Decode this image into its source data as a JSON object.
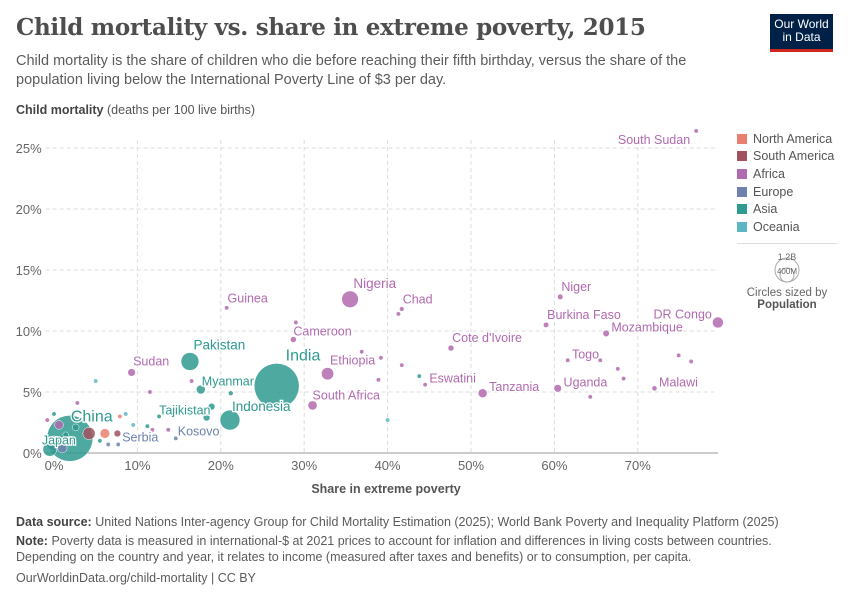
{
  "header": {
    "title": "Child mortality vs. share in extreme poverty, 2015",
    "subtitle": "Child mortality is the share of children who die before reaching their fifth birthday, versus the share of the population living below the International Poverty Line of $3 per day.",
    "logo": "Our World in Data"
  },
  "legend": {
    "items": [
      {
        "label": "North America",
        "color": "#e9806f"
      },
      {
        "label": "South America",
        "color": "#a2525e"
      },
      {
        "label": "Africa",
        "color": "#b16aaf"
      },
      {
        "label": "Europe",
        "color": "#6d82ae"
      },
      {
        "label": "Asia",
        "color": "#2f9a8f"
      },
      {
        "label": "Oceania",
        "color": "#5bb7c5"
      }
    ],
    "size_big": "1.2B",
    "size_small": "400M",
    "size_caption": "Circles sized by",
    "size_var": "Population"
  },
  "footer": {
    "source_label": "Data source:",
    "source": "United Nations Inter-agency Group for Child Mortality Estimation (2025); World Bank Poverty and Inequality Platform (2025)",
    "note_label": "Note:",
    "note": "Poverty data is measured in international-$ at 2021 prices to account for inflation and differences in living costs between countries. Depending on the country and year, it relates to income (measured after taxes and benefits) or to consumption, per capita.",
    "url": "OurWorldinData.org/child-mortality | CC BY"
  },
  "chart_data": {
    "type": "scatter",
    "xlabel": "Share in extreme poverty",
    "ylabel": "Child mortality",
    "ylabel_unit": "(deaths per 100 live births)",
    "xlim": [
      -1,
      80
    ],
    "ylim": [
      0,
      26.5
    ],
    "xticks": [
      "0%",
      "10%",
      "20%",
      "30%",
      "40%",
      "50%",
      "60%",
      "70%"
    ],
    "xtick_values": [
      0,
      10,
      20,
      30,
      40,
      50,
      60,
      70
    ],
    "yticks": [
      "0%",
      "5%",
      "10%",
      "15%",
      "20%",
      "25%"
    ],
    "ytick_values": [
      0,
      5,
      10,
      15,
      20,
      25
    ],
    "grid": true,
    "legend_placement": "right",
    "points": [
      {
        "label": "South Sudan",
        "x": 77,
        "y": 26.4,
        "region": "Africa",
        "pop": 11
      },
      {
        "label": "Niger",
        "x": 60.7,
        "y": 12.8,
        "region": "Africa",
        "pop": 20
      },
      {
        "label": "Burkina Faso",
        "x": 59,
        "y": 10.5,
        "region": "Africa",
        "pop": 19
      },
      {
        "label": "DR Congo",
        "x": 79.6,
        "y": 10.7,
        "region": "Africa",
        "pop": 78
      },
      {
        "label": "Nigeria",
        "x": 35.5,
        "y": 12.6,
        "region": "Africa",
        "pop": 181
      },
      {
        "label": "Guinea",
        "x": 20.7,
        "y": 11.9,
        "region": "Africa",
        "pop": 12
      },
      {
        "label": "Chad",
        "x": 41.7,
        "y": 11.8,
        "region": "Africa",
        "pop": 14
      },
      {
        "label": "",
        "x": 41.3,
        "y": 11.4,
        "region": "Africa",
        "pop": 5
      },
      {
        "label": "",
        "x": 29,
        "y": 10.7,
        "region": "Africa",
        "pop": 5
      },
      {
        "label": "Cameroon",
        "x": 28.7,
        "y": 9.3,
        "region": "Africa",
        "pop": 23
      },
      {
        "label": "Cote d'Ivoire",
        "x": 47.6,
        "y": 8.6,
        "region": "Africa",
        "pop": 23
      },
      {
        "label": "Togo",
        "x": 61.6,
        "y": 7.6,
        "region": "Africa",
        "pop": 7
      },
      {
        "label": "Mozambique",
        "x": 66.2,
        "y": 9.8,
        "region": "Africa",
        "pop": 27
      },
      {
        "label": "",
        "x": 74.9,
        "y": 8.0,
        "region": "Africa",
        "pop": 10
      },
      {
        "label": "",
        "x": 76.4,
        "y": 7.5,
        "region": "Africa",
        "pop": 6
      },
      {
        "label": "",
        "x": 65.5,
        "y": 7.6,
        "region": "Africa",
        "pop": 5
      },
      {
        "label": "",
        "x": 67.6,
        "y": 6.9,
        "region": "Africa",
        "pop": 8
      },
      {
        "label": "",
        "x": 68.3,
        "y": 6.1,
        "region": "Africa",
        "pop": 5
      },
      {
        "label": "",
        "x": 64.3,
        "y": 4.6,
        "region": "Africa",
        "pop": 5
      },
      {
        "label": "Malawi",
        "x": 72,
        "y": 5.3,
        "region": "Africa",
        "pop": 17
      },
      {
        "label": "Uganda",
        "x": 60.4,
        "y": 5.3,
        "region": "Africa",
        "pop": 38
      },
      {
        "label": "Tanzania",
        "x": 51.4,
        "y": 4.9,
        "region": "Africa",
        "pop": 52
      },
      {
        "label": "Eswatini",
        "x": 44.5,
        "y": 5.6,
        "region": "Africa",
        "pop": 1.1
      },
      {
        "label": "",
        "x": 43.8,
        "y": 6.3,
        "region": "Asia",
        "pop": 3
      },
      {
        "label": "",
        "x": 39.2,
        "y": 7.8,
        "region": "Africa",
        "pop": 7
      },
      {
        "label": "",
        "x": 41.7,
        "y": 7.2,
        "region": "Africa",
        "pop": 4
      },
      {
        "label": "",
        "x": 36.9,
        "y": 8.3,
        "region": "Africa",
        "pop": 4
      },
      {
        "label": "",
        "x": 38.9,
        "y": 6.0,
        "region": "Africa",
        "pop": 4
      },
      {
        "label": "",
        "x": 40,
        "y": 2.7,
        "region": "Oceania",
        "pop": 3
      },
      {
        "label": "Ethiopia",
        "x": 32.8,
        "y": 6.5,
        "region": "Africa",
        "pop": 100
      },
      {
        "label": "South Africa",
        "x": 31,
        "y": 3.9,
        "region": "Africa",
        "pop": 55
      },
      {
        "label": "India",
        "x": 26.7,
        "y": 5.5,
        "region": "Asia",
        "pop": 1320
      },
      {
        "label": "Pakistan",
        "x": 16.3,
        "y": 7.5,
        "region": "Asia",
        "pop": 208
      },
      {
        "label": "Sudan",
        "x": 9.3,
        "y": 6.6,
        "region": "Africa",
        "pop": 38
      },
      {
        "label": "Myanmar",
        "x": 17.6,
        "y": 5.2,
        "region": "Asia",
        "pop": 52
      },
      {
        "label": "",
        "x": 21.2,
        "y": 4.9,
        "region": "Asia",
        "pop": 15
      },
      {
        "label": "",
        "x": 16.5,
        "y": 5.9,
        "region": "Africa",
        "pop": 4
      },
      {
        "label": "",
        "x": 11.5,
        "y": 5.0,
        "region": "Africa",
        "pop": 4
      },
      {
        "label": "",
        "x": 5,
        "y": 5.9,
        "region": "Oceania",
        "pop": 3
      },
      {
        "label": "Indonesia",
        "x": 21.1,
        "y": 2.7,
        "region": "Asia",
        "pop": 258
      },
      {
        "label": "",
        "x": 18.9,
        "y": 3.8,
        "region": "Asia",
        "pop": 30
      },
      {
        "label": "",
        "x": 18.3,
        "y": 2.9,
        "region": "Asia",
        "pop": 30
      },
      {
        "label": "Tajikistan",
        "x": 12.6,
        "y": 3.0,
        "region": "Asia",
        "pop": 8
      },
      {
        "label": "Kosovo",
        "x": 14.6,
        "y": 1.2,
        "region": "Europe",
        "pop": 1.8
      },
      {
        "label": "Serbia",
        "x": 7.7,
        "y": 0.7,
        "region": "Europe",
        "pop": 7
      },
      {
        "label": "",
        "x": 11.8,
        "y": 1.9,
        "region": "Africa",
        "pop": 4
      },
      {
        "label": "",
        "x": 13.7,
        "y": 1.9,
        "region": "Africa",
        "pop": 3
      },
      {
        "label": "",
        "x": 9.5,
        "y": 2.3,
        "region": "Oceania",
        "pop": 3
      },
      {
        "label": "",
        "x": 11.2,
        "y": 2.2,
        "region": "Asia",
        "pop": 5
      },
      {
        "label": "",
        "x": 7.9,
        "y": 3.0,
        "region": "North America",
        "pop": 3
      },
      {
        "label": "",
        "x": 8.6,
        "y": 3.2,
        "region": "Oceania",
        "pop": 2
      },
      {
        "label": "",
        "x": 2.8,
        "y": 4.1,
        "region": "Africa",
        "pop": 3
      },
      {
        "label": "",
        "x": 0,
        "y": 3.2,
        "region": "Asia",
        "pop": 10
      },
      {
        "label": "",
        "x": -0.8,
        "y": 2.7,
        "region": "Africa",
        "pop": 10
      },
      {
        "label": "",
        "x": 0.6,
        "y": 2.3,
        "region": "Africa",
        "pop": 50
      },
      {
        "label": "",
        "x": 4.2,
        "y": 1.6,
        "region": "South America",
        "pop": 100
      },
      {
        "label": "",
        "x": 6.1,
        "y": 1.6,
        "region": "North America",
        "pop": 60
      },
      {
        "label": "",
        "x": 7.6,
        "y": 1.6,
        "region": "South America",
        "pop": 30
      },
      {
        "label": "",
        "x": 2.6,
        "y": 2.1,
        "region": "Asia",
        "pop": 30
      },
      {
        "label": "",
        "x": 1.4,
        "y": 1.5,
        "region": "Asia",
        "pop": 20
      },
      {
        "label": "China",
        "x": 1.9,
        "y": 1.2,
        "region": "Asia",
        "pop": 1380
      },
      {
        "label": "Japan",
        "x": -0.5,
        "y": 0.3,
        "region": "Asia",
        "pop": 127
      },
      {
        "label": "",
        "x": 0,
        "y": 0.8,
        "region": "Europe",
        "pop": 140
      },
      {
        "label": "",
        "x": 1.0,
        "y": 0.4,
        "region": "Europe",
        "pop": 60
      },
      {
        "label": "",
        "x": 6.5,
        "y": 0.7,
        "region": "Europe",
        "pop": 5
      },
      {
        "label": "",
        "x": 5.5,
        "y": 1.0,
        "region": "Asia",
        "pop": 5
      }
    ]
  }
}
